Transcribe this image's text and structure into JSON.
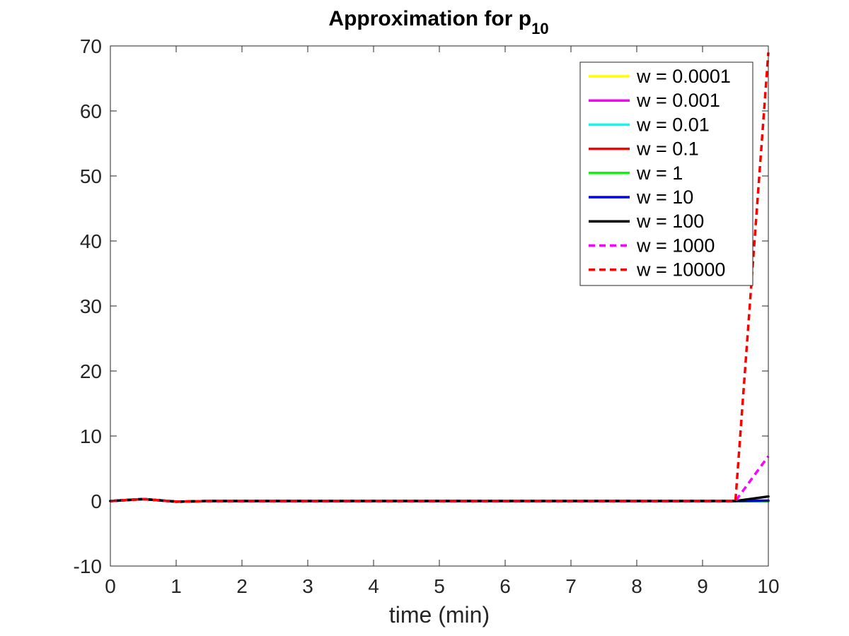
{
  "chart_data": {
    "type": "line",
    "title": "Approximation for p",
    "title_subscript": "10",
    "xlabel": "time (min)",
    "ylabel": "",
    "xlim": [
      0,
      10
    ],
    "ylim": [
      -10,
      70
    ],
    "xticks": [
      0,
      1,
      2,
      3,
      4,
      5,
      6,
      7,
      8,
      9,
      10
    ],
    "yticks": [
      -10,
      0,
      10,
      20,
      30,
      40,
      50,
      60,
      70
    ],
    "grid": false,
    "legend_position": "top-right",
    "x": [
      0,
      0.5,
      1,
      1.5,
      2,
      2.5,
      3,
      3.5,
      4,
      4.5,
      5,
      5.5,
      6,
      6.5,
      7,
      7.5,
      8,
      8.5,
      9,
      9.5,
      10
    ],
    "series": [
      {
        "name": "w = 0.0001",
        "color": "#ffff00",
        "dash": false,
        "values": [
          0,
          0.3,
          -0.1,
          0,
          0,
          0,
          0,
          0,
          0,
          0,
          0,
          0,
          0,
          0,
          0,
          0,
          0,
          0,
          0,
          0,
          0
        ]
      },
      {
        "name": "w = 0.001",
        "color": "#ff00ff",
        "dash": false,
        "values": [
          0,
          0.3,
          -0.1,
          0,
          0,
          0,
          0,
          0,
          0,
          0,
          0,
          0,
          0,
          0,
          0,
          0,
          0,
          0,
          0,
          0,
          0
        ]
      },
      {
        "name": "w = 0.01",
        "color": "#00ffff",
        "dash": false,
        "values": [
          0,
          0.3,
          -0.1,
          0,
          0,
          0,
          0,
          0,
          0,
          0,
          0,
          0,
          0,
          0,
          0,
          0,
          0,
          0,
          0,
          0,
          0
        ]
      },
      {
        "name": "w = 0.1",
        "color": "#ff0000",
        "dash": false,
        "values": [
          0,
          0.3,
          -0.1,
          0,
          0,
          0,
          0,
          0,
          0,
          0,
          0,
          0,
          0,
          0,
          0,
          0,
          0,
          0,
          0,
          0,
          0
        ]
      },
      {
        "name": "w = 1",
        "color": "#00ff00",
        "dash": false,
        "values": [
          0,
          0.3,
          -0.1,
          0,
          0,
          0,
          0,
          0,
          0,
          0,
          0,
          0,
          0,
          0,
          0,
          0,
          0,
          0,
          0,
          0,
          0
        ]
      },
      {
        "name": "w = 10",
        "color": "#0000ff",
        "dash": false,
        "values": [
          0,
          0.3,
          -0.1,
          0,
          0,
          0,
          0,
          0,
          0,
          0,
          0,
          0,
          0,
          0,
          0,
          0,
          0,
          0,
          0,
          0,
          0.07
        ]
      },
      {
        "name": "w = 100",
        "color": "#000000",
        "dash": false,
        "values": [
          0,
          0.3,
          -0.1,
          0,
          0,
          0,
          0,
          0,
          0,
          0,
          0,
          0,
          0,
          0,
          0,
          0,
          0,
          0,
          0,
          0,
          0.7
        ]
      },
      {
        "name": "w = 1000",
        "color": "#ff00ff",
        "dash": true,
        "values": [
          0,
          0.3,
          -0.1,
          0,
          0,
          0,
          0,
          0,
          0,
          0,
          0,
          0,
          0,
          0,
          0,
          0,
          0,
          0,
          0,
          0,
          6.9
        ]
      },
      {
        "name": "w = 10000",
        "color": "#ff0000",
        "dash": true,
        "values": [
          0,
          0.3,
          -0.1,
          0,
          0,
          0,
          0,
          0,
          0,
          0,
          0,
          0,
          0,
          0,
          0,
          0,
          0,
          0,
          0,
          0,
          69
        ]
      }
    ]
  }
}
